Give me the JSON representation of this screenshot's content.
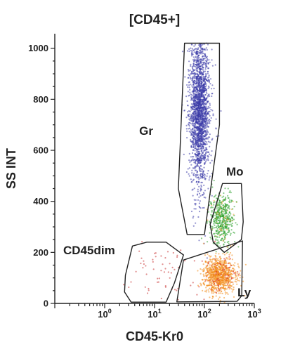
{
  "chart_data": {
    "type": "scatter",
    "title": "[CD45+]",
    "xlabel": "CD45-Kr0",
    "ylabel": "SS INT",
    "x_scale": "log",
    "xlim": [
      0.1,
      1000
    ],
    "ylim": [
      0,
      1024
    ],
    "x_ticks": [
      {
        "base": "10",
        "exp": "0",
        "value": 1
      },
      {
        "base": "10",
        "exp": "1",
        "value": 10
      },
      {
        "base": "10",
        "exp": "2",
        "value": 100
      },
      {
        "base": "10",
        "exp": "3",
        "value": 1000
      }
    ],
    "y_ticks": [
      0,
      200,
      400,
      600,
      800,
      1000
    ],
    "populations": [
      {
        "name": "Gr",
        "color": "#3a3aa8",
        "x_center": 80,
        "y_center": 760,
        "y_spread": 150,
        "x_spread_decades": 0.1
      },
      {
        "name": "Mo",
        "color": "#2aa02a",
        "x_center": 220,
        "y_center": 330,
        "y_spread": 50,
        "x_spread_decades": 0.12
      },
      {
        "name": "Ly",
        "color": "#f28c1a",
        "x_center": 200,
        "y_center": 110,
        "y_spread": 35,
        "x_spread_decades": 0.16
      },
      {
        "name": "CD45dim",
        "color": "#c83232",
        "x_center": 15,
        "y_center": 120,
        "y_spread": 50,
        "x_spread_decades": 0.3
      }
    ],
    "gates": [
      {
        "name": "Gr",
        "label": "Gr",
        "points": [
          [
            40,
            1020
          ],
          [
            200,
            1020
          ],
          [
            200,
            700
          ],
          [
            100,
            270
          ],
          [
            45,
            270
          ],
          [
            30,
            450
          ]
        ]
      },
      {
        "name": "Mo",
        "label": "Mo",
        "points": [
          [
            230,
            470
          ],
          [
            550,
            470
          ],
          [
            600,
            320
          ],
          [
            550,
            250
          ],
          [
            250,
            200
          ],
          [
            150,
            240
          ],
          [
            130,
            310
          ]
        ]
      },
      {
        "name": "Ly",
        "label": "Ly",
        "points": [
          [
            38,
            170
          ],
          [
            580,
            245
          ],
          [
            560,
            30
          ],
          [
            450,
            8
          ],
          [
            28,
            6
          ]
        ]
      },
      {
        "name": "CD45dim",
        "label": "CD45dim",
        "points": [
          [
            2.6,
            110
          ],
          [
            3.6,
            225
          ],
          [
            7,
            240
          ],
          [
            17,
            240
          ],
          [
            38,
            190
          ],
          [
            25,
            80
          ],
          [
            17,
            5
          ],
          [
            3.4,
            5
          ],
          [
            2.5,
            45
          ]
        ]
      }
    ]
  },
  "colors": {
    "gr": "#3a3aa8",
    "mo": "#2aa02a",
    "ly": "#f28c1a",
    "dim": "#c83232",
    "axis": "#222222"
  }
}
